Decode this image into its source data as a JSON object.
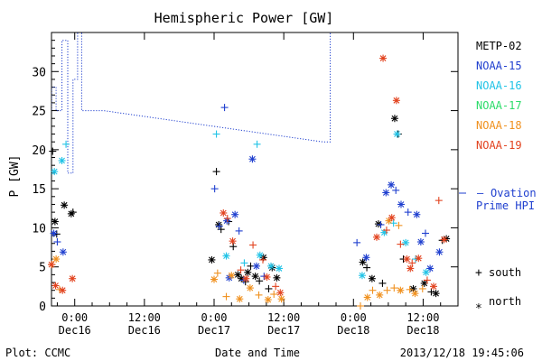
{
  "chart_data": {
    "type": "scatter",
    "title": "Hemispheric Power [GW]",
    "ylabel": "P [GW]",
    "xlabel": "Date and Time",
    "ylim": [
      0,
      35
    ],
    "y_ticks": [
      0,
      5,
      10,
      15,
      20,
      25,
      30
    ],
    "x_range_hours": [
      -4,
      66
    ],
    "x_ticks": [
      {
        "hour": 0,
        "time": "0:00",
        "date": "Dec16"
      },
      {
        "hour": 12,
        "time": "12:00",
        "date": "Dec16"
      },
      {
        "hour": 24,
        "time": "0:00",
        "date": "Dec17"
      },
      {
        "hour": 36,
        "time": "12:00",
        "date": "Dec17"
      },
      {
        "hour": 48,
        "time": "0:00",
        "date": "Dec18"
      },
      {
        "hour": 60,
        "time": "12:00",
        "date": "Dec18"
      }
    ],
    "legend": [
      {
        "name": "METP-02",
        "color": "#000000"
      },
      {
        "name": "NOAA-15",
        "color": "#1f3fcf"
      },
      {
        "name": "NOAA-16",
        "color": "#21c3e6"
      },
      {
        "name": "NOAA-17",
        "color": "#2bdc6a"
      },
      {
        "name": "NOAA-18",
        "color": "#f0911f"
      },
      {
        "name": "NOAA-19",
        "color": "#e2431f"
      }
    ],
    "ovation_series": {
      "name": "Ovation Prime HPI",
      "color": "#1f3fcf",
      "points": [
        [
          -4.3,
          25
        ],
        [
          -4,
          25
        ],
        [
          -4,
          28
        ],
        [
          -3.2,
          28
        ],
        [
          -3.2,
          25
        ],
        [
          -2.2,
          25
        ],
        [
          -2.2,
          34
        ],
        [
          -1.2,
          34
        ],
        [
          -1.2,
          17
        ],
        [
          -0.3,
          17
        ],
        [
          -0.3,
          29
        ],
        [
          0.5,
          29
        ],
        [
          0.5,
          36
        ],
        [
          1.2,
          36
        ],
        [
          1.2,
          25
        ],
        [
          5,
          25
        ],
        [
          42.7,
          21
        ],
        [
          44,
          21
        ],
        [
          44,
          36
        ]
      ]
    },
    "series": [
      {
        "name": "METP-02",
        "color": "#000000",
        "points": [
          [
            -3.8,
            19.8,
            "+"
          ],
          [
            -3.4,
            10.8,
            "*"
          ],
          [
            -3.1,
            9.2,
            "+"
          ],
          [
            -1.8,
            12.9,
            "*"
          ],
          [
            -0.6,
            11.8,
            "*"
          ],
          [
            -0.3,
            12,
            "+"
          ],
          [
            24.4,
            17.2,
            "+"
          ],
          [
            24.8,
            10.4,
            "*"
          ],
          [
            25.2,
            9.8,
            "+"
          ],
          [
            26.5,
            10.8,
            "+"
          ],
          [
            27.3,
            7.6,
            "+"
          ],
          [
            28.1,
            4,
            "*"
          ],
          [
            28.7,
            3.5,
            "*"
          ],
          [
            29.4,
            3.1,
            "+"
          ],
          [
            29.8,
            4.3,
            "*"
          ],
          [
            30.3,
            5.1,
            "+"
          ],
          [
            31.1,
            3.8,
            "*"
          ],
          [
            31.8,
            3.2,
            "+"
          ],
          [
            32.5,
            6.2,
            "*"
          ],
          [
            33.4,
            2.2,
            "+"
          ],
          [
            34.0,
            4.9,
            "*"
          ],
          [
            34.8,
            3.6,
            "*"
          ],
          [
            23.6,
            5.9,
            "*"
          ],
          [
            49.6,
            5.6,
            "*"
          ],
          [
            50.3,
            4.9,
            "+"
          ],
          [
            51.2,
            3.5,
            "*"
          ],
          [
            52.3,
            10.5,
            "*"
          ],
          [
            53,
            2.9,
            "+"
          ],
          [
            55.1,
            24,
            "*"
          ],
          [
            55.7,
            22,
            "+"
          ],
          [
            56.6,
            6,
            "+"
          ],
          [
            58.3,
            2.2,
            "*"
          ],
          [
            60.2,
            2.9,
            "*"
          ],
          [
            61.4,
            1.8,
            "+"
          ],
          [
            62.2,
            1.6,
            "*"
          ],
          [
            63.3,
            8.4,
            "+"
          ],
          [
            64,
            8.6,
            "*"
          ]
        ]
      },
      {
        "name": "NOAA-15",
        "color": "#1f3fcf",
        "points": [
          [
            -3.6,
            9.3,
            "*"
          ],
          [
            -3,
            8.2,
            "+"
          ],
          [
            -2,
            6.9,
            "*"
          ],
          [
            24.1,
            15,
            "+"
          ],
          [
            25.8,
            25.4,
            "+"
          ],
          [
            24.9,
            10.2,
            "+"
          ],
          [
            26.2,
            10.9,
            "*"
          ],
          [
            26.6,
            3.6,
            "*"
          ],
          [
            27.6,
            11.7,
            "*"
          ],
          [
            28.3,
            9.6,
            "+"
          ],
          [
            29.1,
            3.3,
            "+"
          ],
          [
            30.6,
            18.8,
            "*"
          ],
          [
            31.3,
            5.1,
            "*"
          ],
          [
            32.6,
            3.8,
            "+"
          ],
          [
            48.6,
            8.1,
            "+"
          ],
          [
            50.2,
            6.2,
            "*"
          ],
          [
            52.7,
            10.4,
            "+"
          ],
          [
            53.6,
            14.5,
            "*"
          ],
          [
            54.5,
            15.5,
            "*"
          ],
          [
            55.3,
            14.8,
            "+"
          ],
          [
            56.2,
            13,
            "*"
          ],
          [
            57.4,
            12,
            "+"
          ],
          [
            58.9,
            11.7,
            "*"
          ],
          [
            59.6,
            8.2,
            "*"
          ],
          [
            60.4,
            9.3,
            "+"
          ],
          [
            61.2,
            4.8,
            "*"
          ],
          [
            62.8,
            6.9,
            "*"
          ]
        ]
      },
      {
        "name": "NOAA-16",
        "color": "#21c3e6",
        "points": [
          [
            -3.5,
            17.2,
            "*"
          ],
          [
            -2.2,
            18.6,
            "*"
          ],
          [
            -1.5,
            20.7,
            "+"
          ],
          [
            24.4,
            22,
            "+"
          ],
          [
            31.4,
            20.7,
            "+"
          ],
          [
            26.1,
            6.4,
            "*"
          ],
          [
            29.2,
            5.5,
            "+"
          ],
          [
            31.9,
            6.5,
            "*"
          ],
          [
            33.8,
            5.1,
            "*"
          ],
          [
            35.2,
            4.8,
            "*"
          ],
          [
            55.5,
            22,
            "*"
          ],
          [
            53.3,
            9.4,
            "*"
          ],
          [
            54.9,
            10.6,
            "+"
          ],
          [
            57,
            8.1,
            "*"
          ],
          [
            58.7,
            6,
            "+"
          ],
          [
            60.5,
            4.3,
            "*"
          ],
          [
            49.5,
            3.9,
            "*"
          ]
        ]
      },
      {
        "name": "NOAA-17",
        "color": "#2bdc6a",
        "points": []
      },
      {
        "name": "NOAA-18",
        "color": "#f0911f",
        "points": [
          [
            -3.9,
            5.3,
            "+"
          ],
          [
            -3.2,
            6,
            "*"
          ],
          [
            -2.6,
            2.1,
            "+"
          ],
          [
            24,
            3.4,
            "*"
          ],
          [
            24.6,
            4.2,
            "+"
          ],
          [
            26.1,
            1.2,
            "+"
          ],
          [
            27,
            3.9,
            "*"
          ],
          [
            28.4,
            0.9,
            "*"
          ],
          [
            30.2,
            2.3,
            "*"
          ],
          [
            31.7,
            1.4,
            "+"
          ],
          [
            33.3,
            0.8,
            "*"
          ],
          [
            34.3,
            1.5,
            "+"
          ],
          [
            35.6,
            0.9,
            "*"
          ],
          [
            49.2,
            0,
            "+"
          ],
          [
            50.4,
            1.1,
            "*"
          ],
          [
            51.3,
            2,
            "+"
          ],
          [
            52.5,
            1.4,
            "*"
          ],
          [
            53.8,
            2,
            "+"
          ],
          [
            55,
            2.3,
            "+"
          ],
          [
            56.1,
            2,
            "*"
          ],
          [
            57.7,
            2.1,
            "+"
          ],
          [
            58.6,
            1.6,
            "*"
          ],
          [
            59.9,
            2.2,
            "+"
          ],
          [
            55.8,
            10.3,
            "+"
          ],
          [
            54.1,
            10.9,
            "*"
          ]
        ]
      },
      {
        "name": "NOAA-19",
        "color": "#e2431f",
        "points": [
          [
            -4,
            5.3,
            "*"
          ],
          [
            -3.3,
            2.6,
            "*"
          ],
          [
            -2.1,
            2,
            "*"
          ],
          [
            -0.4,
            3.5,
            "*"
          ],
          [
            25.6,
            11.9,
            "*"
          ],
          [
            26.3,
            11.2,
            "+"
          ],
          [
            27.2,
            8.3,
            "*"
          ],
          [
            28.6,
            4.6,
            "+"
          ],
          [
            29.5,
            3.5,
            "*"
          ],
          [
            30.7,
            7.8,
            "+"
          ],
          [
            32.4,
            5.9,
            "+"
          ],
          [
            33.1,
            3.7,
            "*"
          ],
          [
            34.6,
            2.5,
            "+"
          ],
          [
            35.4,
            1.7,
            "*"
          ],
          [
            53.1,
            31.7,
            "*"
          ],
          [
            55.4,
            26.3,
            "*"
          ],
          [
            52,
            8.8,
            "*"
          ],
          [
            53.7,
            9.7,
            "+"
          ],
          [
            54.6,
            11.3,
            "*"
          ],
          [
            56.1,
            7.9,
            "+"
          ],
          [
            57.2,
            6,
            "*"
          ],
          [
            58.1,
            5.5,
            "+"
          ],
          [
            59.2,
            6.1,
            "*"
          ],
          [
            60.7,
            3.3,
            "+"
          ],
          [
            61.8,
            2.5,
            "*"
          ],
          [
            62.7,
            13.5,
            "+"
          ],
          [
            63.6,
            8.5,
            "*"
          ],
          [
            57.8,
            4.8,
            "*"
          ]
        ]
      }
    ],
    "marker_key": [
      {
        "symbol": "+",
        "label": "south"
      },
      {
        "symbol": "*",
        "label": "north"
      }
    ],
    "grid": false,
    "legend_position": "right"
  },
  "footer": {
    "plot_credit": "Plot: CCMC",
    "timestamp": "2013/12/18 19:45:06"
  },
  "ovation_label": {
    "dash": "–",
    "line1": "Ovation",
    "line2": "Prime HPI"
  }
}
